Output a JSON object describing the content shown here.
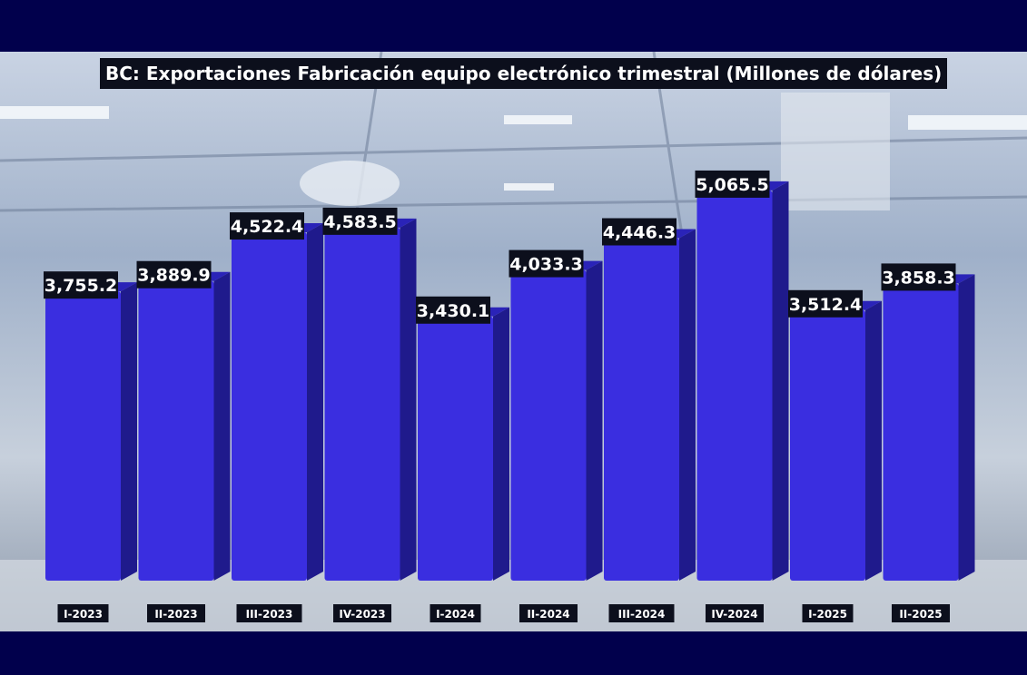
{
  "chart_data": {
    "type": "bar",
    "title": "BC: Exportaciones Fabricación equipo electrónico trimestral (Millones de dólares)",
    "categories": [
      "I-2023",
      "II-2023",
      "III-2023",
      "IV-2023",
      "I-2024",
      "II-2024",
      "III-2024",
      "IV-2024",
      "I-2025",
      "II-2025"
    ],
    "values": [
      3755.2,
      3889.9,
      4522.4,
      4583.5,
      3430.1,
      4033.3,
      4446.3,
      5065.5,
      3512.4,
      3858.3
    ],
    "value_labels": [
      "3,755.2",
      "3,889.9",
      "4,522.4",
      "4,583.5",
      "3,430.1",
      "4,033.3",
      "4,446.3",
      "5,065.5",
      "3,512.4",
      "3,858.3"
    ],
    "xlabel": "",
    "ylabel": "",
    "ylim": [
      0,
      5100
    ],
    "grid": false,
    "legend": "none",
    "colors": {
      "bar_front": "#3a2ee0",
      "bar_side": "#1f1a8c",
      "bar_top": "#2a23b8",
      "label_bg": "#0c0f1c",
      "label_text": "#ffffff",
      "frame": "#01004c"
    }
  }
}
